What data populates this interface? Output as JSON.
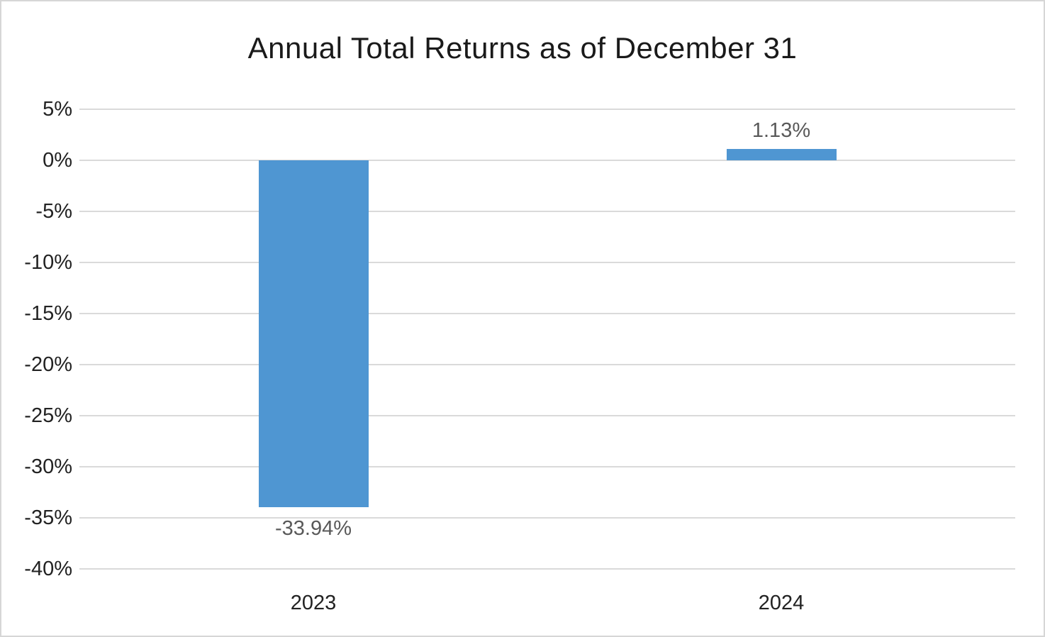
{
  "chart_data": {
    "type": "bar",
    "title": "Annual Total Returns as of December 31",
    "categories": [
      "2023",
      "2024"
    ],
    "values": [
      -33.94,
      1.13
    ],
    "data_labels": [
      "-33.94%",
      "1.13%"
    ],
    "xlabel": "",
    "ylabel": "",
    "ylim": [
      -40,
      5
    ],
    "ytick_step": 5,
    "ytick_labels": [
      "5%",
      "0%",
      "-5%",
      "-10%",
      "-15%",
      "-20%",
      "-25%",
      "-30%",
      "-35%",
      "-40%"
    ],
    "grid": true,
    "legend_position": "none",
    "bar_color": "#4f96d2",
    "value_label_color": "#595959",
    "axis_text_color": "#222222",
    "gridline_color": "#dadada"
  }
}
